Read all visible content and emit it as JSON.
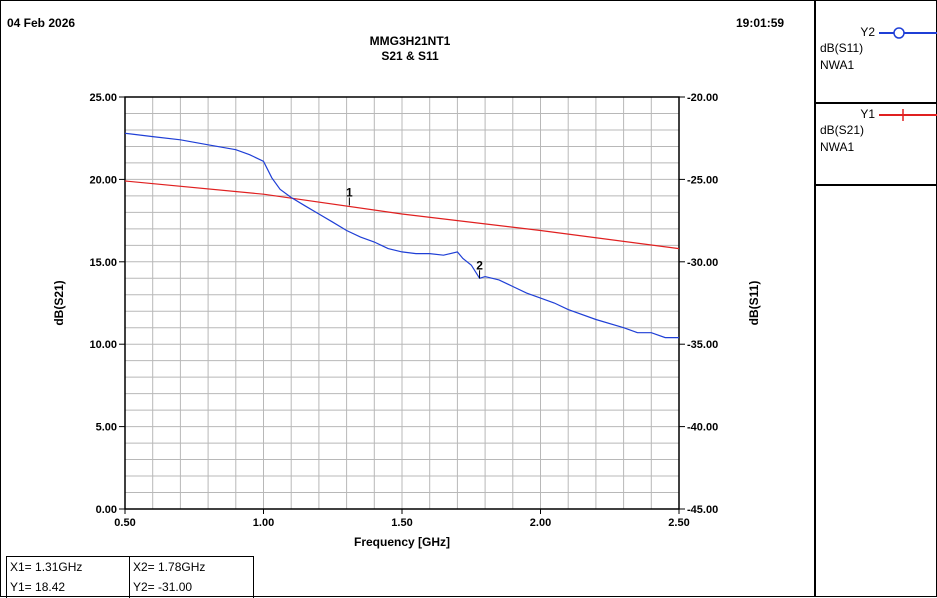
{
  "header": {
    "date": "04 Feb 2026",
    "time": "19:01:59",
    "title": "MMG3H21NT1",
    "subtitle": "S21 & S11"
  },
  "legend": {
    "y2": {
      "key": "Y2",
      "line1": "dB(S11)",
      "line2": "NWA1",
      "color": "#1f3fd6"
    },
    "y1": {
      "key": "Y1",
      "line1": "dB(S21)",
      "line2": "NWA1",
      "color": "#e02020"
    }
  },
  "markers_readout": {
    "x1": "X1= 1.31GHz",
    "y1": "Y1= 18.42",
    "x2": "X2= 1.78GHz",
    "y2": "Y2= -31.00"
  },
  "chart_data": {
    "type": "line",
    "xlabel": "Frequency [GHz]",
    "ylabel": "dB(S21)",
    "y2label": "dB(S11)",
    "xlim": [
      0.5,
      2.5
    ],
    "ylim": [
      0,
      25
    ],
    "y2lim": [
      -45,
      -20
    ],
    "grid": true,
    "x_ticks": [
      "0.50",
      "1.00",
      "1.50",
      "2.00",
      "2.50"
    ],
    "y_ticks": [
      "0.00",
      "5.00",
      "10.00",
      "15.00",
      "20.00",
      "25.00"
    ],
    "y2_ticks": [
      "-45.00",
      "-40.00",
      "-35.00",
      "-30.00",
      "-25.00",
      "-20.00"
    ],
    "series": [
      {
        "name": "dB(S21)",
        "axis": "y",
        "color": "#e02020",
        "x": [
          0.5,
          1.0,
          1.5,
          2.0,
          2.5
        ],
        "y": [
          19.9,
          19.1,
          17.9,
          16.9,
          15.8
        ]
      },
      {
        "name": "dB(S11)",
        "axis": "y2",
        "color": "#1f3fd6",
        "x": [
          0.5,
          0.6,
          0.7,
          0.8,
          0.9,
          0.95,
          1.0,
          1.03,
          1.06,
          1.1,
          1.15,
          1.2,
          1.25,
          1.3,
          1.35,
          1.4,
          1.45,
          1.5,
          1.55,
          1.6,
          1.65,
          1.7,
          1.72,
          1.75,
          1.78,
          1.8,
          1.85,
          1.9,
          1.95,
          2.0,
          2.05,
          2.1,
          2.2,
          2.3,
          2.35,
          2.4,
          2.45,
          2.5
        ],
        "y": [
          -22.2,
          -22.4,
          -22.6,
          -22.9,
          -23.2,
          -23.5,
          -23.9,
          -24.9,
          -25.6,
          -26.1,
          -26.6,
          -27.1,
          -27.6,
          -28.1,
          -28.5,
          -28.8,
          -29.2,
          -29.4,
          -29.5,
          -29.5,
          -29.6,
          -29.4,
          -29.8,
          -30.2,
          -31.0,
          -30.9,
          -31.1,
          -31.5,
          -31.9,
          -32.2,
          -32.5,
          -32.9,
          -33.5,
          -34.0,
          -34.3,
          -34.3,
          -34.6,
          -34.6
        ]
      }
    ],
    "markers": [
      {
        "label": "1",
        "series": "dB(S21)",
        "x": 1.31,
        "y": 18.42
      },
      {
        "label": "2",
        "series": "dB(S11)",
        "x": 1.78,
        "y": -31.0
      }
    ]
  }
}
